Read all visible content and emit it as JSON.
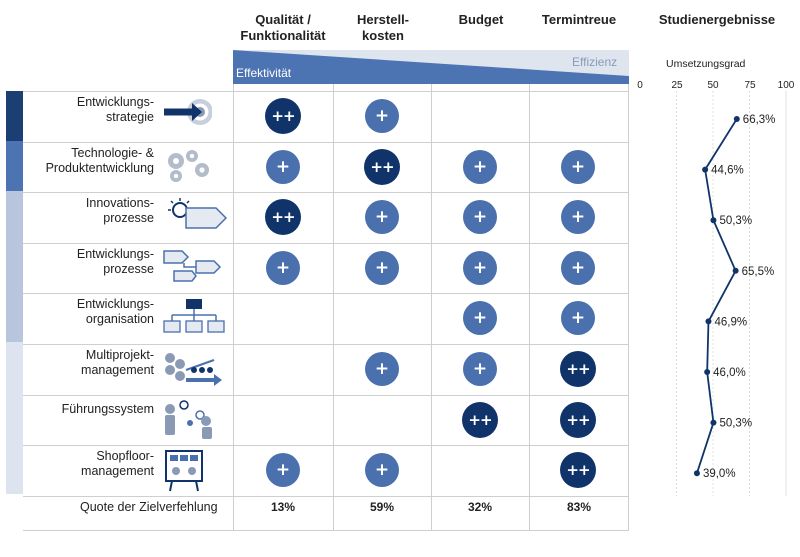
{
  "columns": [
    {
      "label_line1": "Qualität /",
      "label_line2": "Funktionalität"
    },
    {
      "label_line1": "Herstell-",
      "label_line2": "kosten"
    },
    {
      "label_line1": "Budget",
      "label_line2": ""
    },
    {
      "label_line1": "Termintreue",
      "label_line2": ""
    },
    {
      "label_line1": "Studienergebnisse",
      "label_line2": ""
    }
  ],
  "banner": {
    "effizienz": "Effizienz",
    "effektivitaet": "Effektivität"
  },
  "rows": [
    {
      "label": "Entwicklungs-\nstrategie",
      "icon": "target-arrow-icon",
      "ratings": [
        "++",
        "+",
        "",
        ""
      ]
    },
    {
      "label": "Technologie- &\nProduktentwicklung",
      "icon": "gears-icon",
      "ratings": [
        "+",
        "++",
        "+",
        "+"
      ]
    },
    {
      "label": "Innovations-\nprozesse",
      "icon": "lightbulb-process-icon",
      "ratings": [
        "++",
        "+",
        "+",
        "+"
      ]
    },
    {
      "label": "Entwicklungs-\nprozesse",
      "icon": "process-flow-icon",
      "ratings": [
        "+",
        "+",
        "+",
        "+"
      ]
    },
    {
      "label": "Entwicklungs-\norganisation",
      "icon": "org-chart-icon",
      "ratings": [
        "",
        "",
        "+",
        "+"
      ]
    },
    {
      "label": "Multiprojekt-\nmanagement",
      "icon": "multiproject-icon",
      "ratings": [
        "",
        "+",
        "+",
        "++"
      ]
    },
    {
      "label": "Führungssystem",
      "icon": "leadership-icon",
      "ratings": [
        "",
        "",
        "++",
        "++"
      ]
    },
    {
      "label": "Shopfloor-\nmanagement",
      "icon": "shopfloor-board-icon",
      "ratings": [
        "+",
        "+",
        "",
        "++"
      ]
    }
  ],
  "quota": {
    "label": "Quote der Zielverfehlung",
    "values": [
      "13%",
      "59%",
      "32%",
      "83%"
    ]
  },
  "colors": {
    "plus": "#4a70ad",
    "plusplus": "#10346a",
    "line": "#10346a",
    "sidebar": [
      "#1b3f73",
      "#4d74b2",
      "#b8c6dd",
      "#dde4ef"
    ]
  },
  "chart_data": {
    "type": "line",
    "title": "Umsetzungsgrad",
    "xlim": [
      0,
      100
    ],
    "xticks": [
      0,
      25,
      50,
      75,
      100
    ],
    "categories": [
      "Entwicklungsstrategie",
      "Technologie- & Produktentwicklung",
      "Innovationsprozesse",
      "Entwicklungsprozesse",
      "Entwicklungsorganisation",
      "Multiprojektmanagement",
      "Führungssystem",
      "Shopfloormanagement"
    ],
    "values": [
      66.3,
      44.6,
      50.3,
      65.5,
      46.9,
      46.0,
      50.3,
      39.0
    ],
    "value_labels": [
      "66,3%",
      "44,6%",
      "50,3%",
      "65,5%",
      "46,9%",
      "46,0%",
      "50,3%",
      "39,0%"
    ],
    "grid": true
  }
}
